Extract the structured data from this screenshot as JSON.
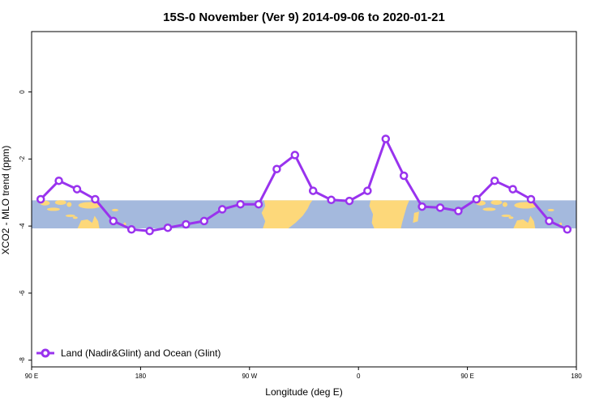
{
  "chart_data": {
    "type": "line",
    "title": "15S-0 November (Ver 9)   2014-09-06 to 2020-01-21",
    "xlabel": "Longitude (deg E)",
    "ylabel": "XCO2 - MLO trend (ppm)",
    "xlim": [
      90,
      540
    ],
    "ylim": [
      -8.2,
      1.8
    ],
    "x_ticks": [
      {
        "value": 90,
        "label": "90 E"
      },
      {
        "value": 180,
        "label": "180"
      },
      {
        "value": 270,
        "label": "90 W"
      },
      {
        "value": 360,
        "label": "0"
      },
      {
        "value": 450,
        "label": "90 E"
      },
      {
        "value": 540,
        "label": "180"
      }
    ],
    "y_ticks": [
      {
        "value": 0,
        "label": "0"
      },
      {
        "value": -2,
        "label": "-2"
      },
      {
        "value": -4,
        "label": "-4"
      },
      {
        "value": -6,
        "label": "-6"
      },
      {
        "value": -8,
        "label": "-8"
      }
    ],
    "grid": false,
    "legend_position": "bottom-left",
    "background_map": {
      "lat_band": "15S-0",
      "y_range": [
        -4.07,
        -3.23
      ],
      "ocean_color": "#a4b9dd",
      "land_color": "#fdd87a"
    },
    "series": [
      {
        "name": "Land (Nadir&Glint) and Ocean (Glint)",
        "color": "#9933ee",
        "x": [
          97.5,
          112.5,
          127.5,
          142.5,
          157.5,
          172.5,
          187.5,
          202.5,
          217.5,
          232.5,
          247.5,
          262.5,
          277.5,
          292.5,
          307.5,
          322.5,
          337.5,
          352.5,
          367.5,
          382.5,
          397.5,
          412.5,
          427.5,
          442.5,
          457.5,
          472.5,
          487.5,
          502.5,
          517.5,
          532.5
        ],
        "y": [
          -3.2,
          -2.65,
          -2.9,
          -3.2,
          -3.85,
          -4.1,
          -4.15,
          -4.05,
          -3.95,
          -3.85,
          -3.5,
          -3.35,
          -3.35,
          -2.3,
          -1.88,
          -2.95,
          -3.22,
          -3.25,
          -2.95,
          -1.4,
          -2.5,
          -3.42,
          -3.45,
          -3.55,
          -3.2,
          -2.65,
          -2.9,
          -3.2,
          -3.85,
          -4.1
        ]
      }
    ]
  }
}
